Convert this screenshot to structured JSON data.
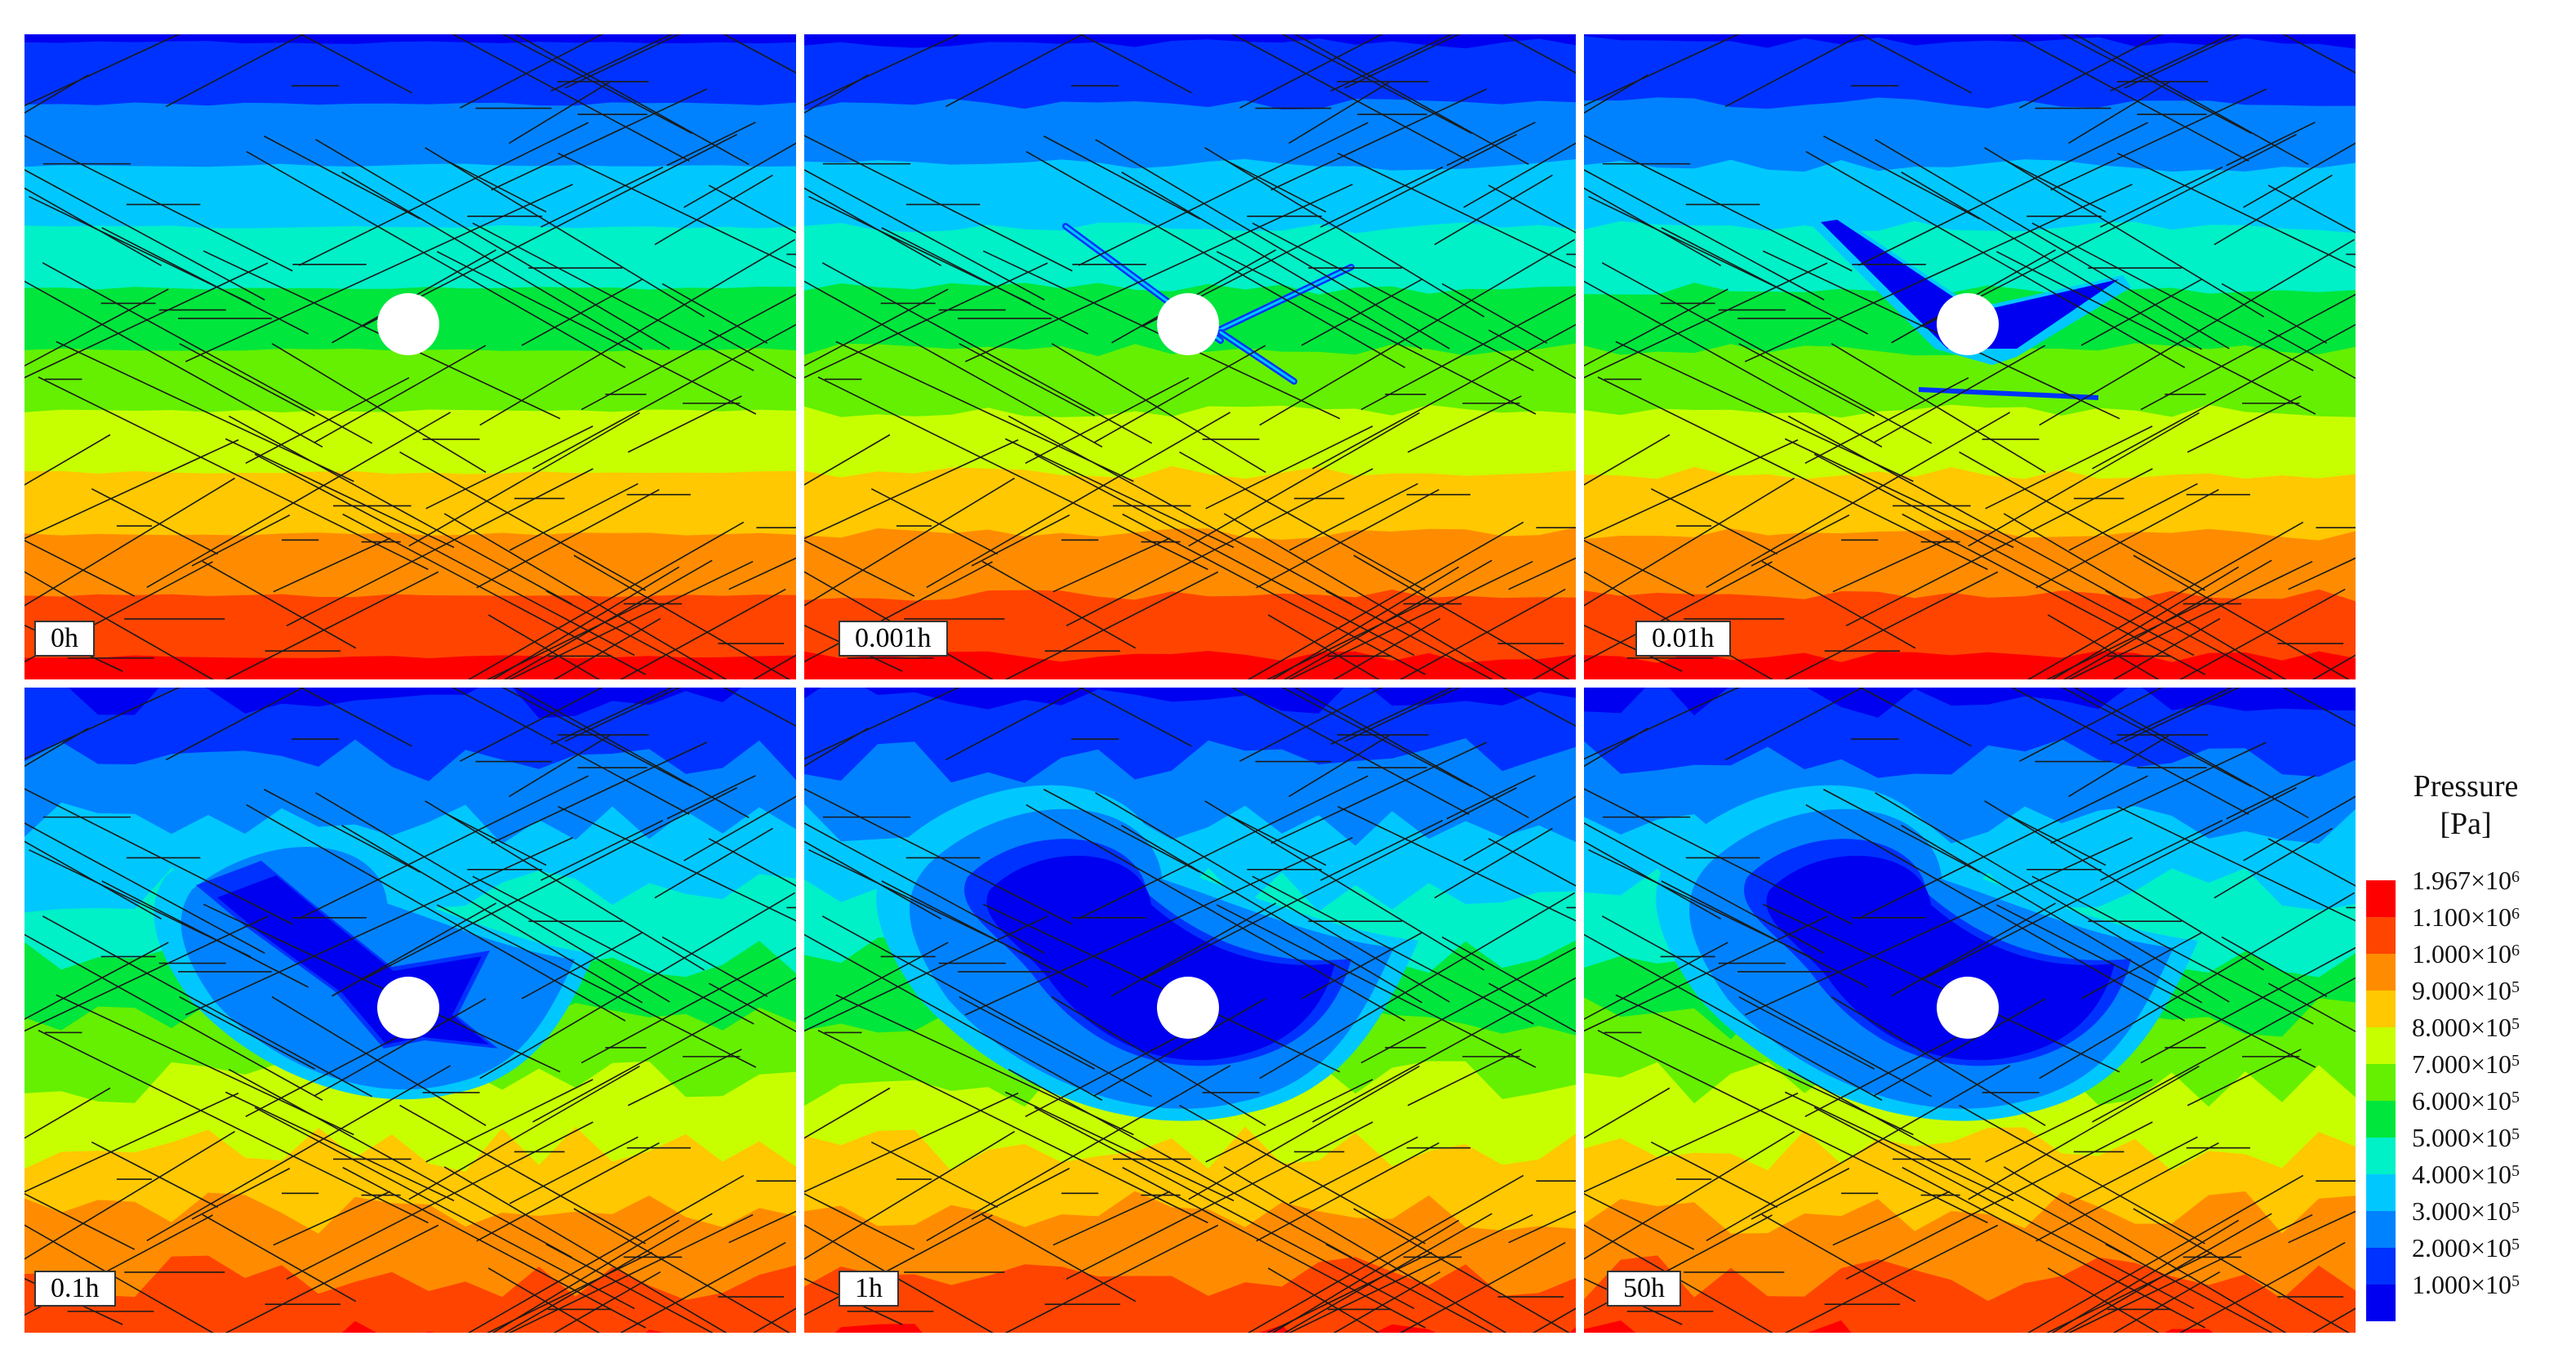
{
  "panels": [
    {
      "time": "0h",
      "stage": 0
    },
    {
      "time": "0.001h",
      "stage": 1
    },
    {
      "time": "0.01h",
      "stage": 2
    },
    {
      "time": "0.1h",
      "stage": 3
    },
    {
      "time": "1h",
      "stage": 4
    },
    {
      "time": "50h",
      "stage": 5
    }
  ],
  "legend": {
    "title_line1": "Pressure",
    "title_line2": "[Pa]",
    "entries": [
      {
        "mantissa": "1.967",
        "exp": "6",
        "color": "#ff0000"
      },
      {
        "mantissa": "1.100",
        "exp": "6",
        "color": "#ff4400"
      },
      {
        "mantissa": "1.000",
        "exp": "6",
        "color": "#ff8c00"
      },
      {
        "mantissa": "9.000",
        "exp": "5",
        "color": "#ffc800"
      },
      {
        "mantissa": "8.000",
        "exp": "5",
        "color": "#c8ff00"
      },
      {
        "mantissa": "7.000",
        "exp": "5",
        "color": "#64f000"
      },
      {
        "mantissa": "6.000",
        "exp": "5",
        "color": "#00e63c"
      },
      {
        "mantissa": "5.000",
        "exp": "5",
        "color": "#00f0c8"
      },
      {
        "mantissa": "4.000",
        "exp": "5",
        "color": "#00c8ff"
      },
      {
        "mantissa": "3.000",
        "exp": "5",
        "color": "#0082ff"
      },
      {
        "mantissa": "2.000",
        "exp": "5",
        "color": "#0032ff"
      },
      {
        "mantissa": "1.000",
        "exp": "5",
        "color": "#0000f0"
      }
    ]
  }
}
